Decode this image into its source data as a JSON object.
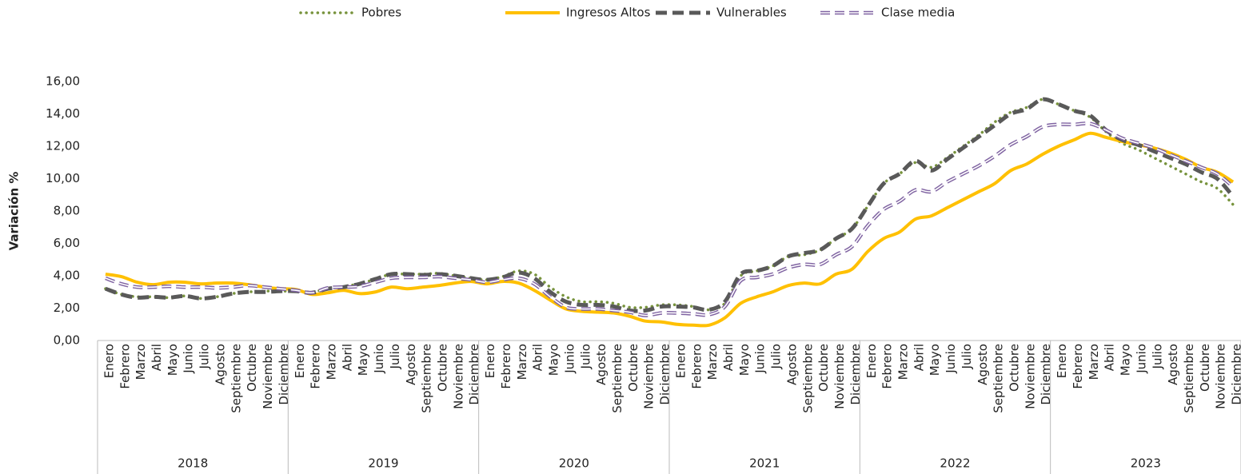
{
  "chart_data": {
    "type": "line",
    "y_label": "Variación  %",
    "categories": [
      "Enero",
      "Febrero",
      "Marzo",
      "Abril",
      "Mayo",
      "Junio",
      "Julio",
      "Agosto",
      "Septiembre",
      "Octubre",
      "Noviembre",
      "Diciembre",
      "Enero",
      "Febrero",
      "Marzo",
      "Abril",
      "Mayo",
      "Junio",
      "Julio",
      "Agosto",
      "Septiembre",
      "Octubre",
      "Noviembre",
      "Diciembre",
      "Enero",
      "Febrero",
      "Marzo",
      "Abril",
      "Mayo",
      "Junio",
      "Julio",
      "Agosto",
      "Septiembre",
      "Octubre",
      "Noviembre",
      "Diciembre",
      "Enero",
      "Febrero",
      "Marzo",
      "Abril",
      "Mayo",
      "Junio",
      "Julio",
      "Agosto",
      "Septiembre",
      "Octubre",
      "Noviembre",
      "Diciembre",
      "Enero",
      "Febrero",
      "Marzo",
      "Abril",
      "Mayo",
      "Junio",
      "Julio",
      "Agosto",
      "Septiembre",
      "Octubre",
      "Noviembre",
      "Diciembre",
      "Enero",
      "Febrero",
      "Marzo",
      "Abril",
      "Mayo",
      "Junio",
      "Julio",
      "Agosto",
      "Septiembre",
      "Octubre",
      "Noviembre",
      "Diciembre"
    ],
    "groups": [
      "2018",
      "2019",
      "2020",
      "2021",
      "2022",
      "2023"
    ],
    "ylim": [
      0,
      16
    ],
    "yticks": [
      {
        "value": 0,
        "label": "0,00"
      },
      {
        "value": 2,
        "label": "2,00"
      },
      {
        "value": 4,
        "label": "4,00"
      },
      {
        "value": 6,
        "label": "6,00"
      },
      {
        "value": 8,
        "label": "8,00"
      },
      {
        "value": 10,
        "label": "10,00"
      },
      {
        "value": 12,
        "label": "12,00"
      },
      {
        "value": 14,
        "label": "14,00"
      },
      {
        "value": 16,
        "label": "16,00"
      }
    ],
    "grid": false,
    "legend": "top",
    "series": [
      {
        "name": "Pobres",
        "color": "#77933c",
        "style": "dotted",
        "values": [
          3.2,
          2.85,
          2.7,
          2.7,
          2.65,
          2.75,
          2.6,
          2.7,
          2.9,
          3.0,
          3.05,
          3.05,
          3.05,
          3.0,
          3.2,
          3.35,
          3.5,
          3.8,
          4.1,
          4.1,
          4.1,
          4.15,
          4.0,
          3.85,
          3.75,
          3.95,
          4.3,
          4.1,
          3.3,
          2.7,
          2.4,
          2.4,
          2.3,
          2.05,
          2.05,
          2.2,
          2.2,
          2.1,
          1.9,
          2.3,
          4.0,
          4.3,
          4.6,
          5.2,
          5.3,
          5.6,
          6.3,
          6.9,
          8.3,
          9.7,
          10.3,
          11.0,
          10.7,
          11.3,
          12.0,
          12.7,
          13.5,
          14.1,
          14.4,
          14.9,
          14.6,
          14.2,
          13.8,
          12.9,
          12.2,
          11.8,
          11.3,
          10.8,
          10.3,
          9.8,
          9.4,
          8.4
        ]
      },
      {
        "name": "Ingresos Altos",
        "color": "#ffc000",
        "style": "solid",
        "values": [
          4.1,
          3.95,
          3.6,
          3.45,
          3.6,
          3.6,
          3.5,
          3.55,
          3.55,
          3.45,
          3.3,
          3.2,
          3.15,
          2.85,
          2.95,
          3.1,
          2.9,
          3.0,
          3.3,
          3.2,
          3.3,
          3.4,
          3.55,
          3.65,
          3.5,
          3.65,
          3.55,
          3.1,
          2.5,
          1.95,
          1.8,
          1.75,
          1.7,
          1.5,
          1.2,
          1.15,
          1.0,
          0.95,
          0.95,
          1.4,
          2.3,
          2.7,
          3.0,
          3.4,
          3.55,
          3.5,
          4.1,
          4.4,
          5.5,
          6.3,
          6.7,
          7.5,
          7.7,
          8.2,
          8.7,
          9.2,
          9.7,
          10.5,
          10.9,
          11.5,
          12.0,
          12.4,
          12.8,
          12.55,
          12.3,
          12.1,
          11.9,
          11.6,
          11.2,
          10.7,
          10.4,
          9.8
        ]
      },
      {
        "name": "Vulnerables",
        "color": "#595959",
        "style": "dashed",
        "values": [
          3.2,
          2.85,
          2.65,
          2.7,
          2.65,
          2.75,
          2.6,
          2.7,
          2.9,
          3.0,
          3.0,
          3.05,
          3.05,
          2.95,
          3.2,
          3.3,
          3.5,
          3.8,
          4.1,
          4.1,
          4.05,
          4.1,
          4.0,
          3.85,
          3.75,
          3.9,
          4.2,
          3.85,
          3.0,
          2.4,
          2.2,
          2.2,
          2.1,
          1.85,
          1.85,
          2.1,
          2.1,
          2.05,
          1.9,
          2.4,
          4.1,
          4.3,
          4.6,
          5.2,
          5.4,
          5.6,
          6.3,
          6.9,
          8.3,
          9.7,
          10.3,
          11.1,
          10.5,
          11.2,
          11.9,
          12.6,
          13.3,
          14.0,
          14.3,
          14.9,
          14.6,
          14.2,
          13.9,
          13.0,
          12.4,
          12.1,
          11.7,
          11.3,
          10.9,
          10.4,
          10.0,
          8.9
        ]
      },
      {
        "name": "Clase media",
        "color": "#8064a2",
        "style": "double",
        "values": [
          3.85,
          3.5,
          3.3,
          3.3,
          3.35,
          3.3,
          3.3,
          3.25,
          3.3,
          3.4,
          3.3,
          3.2,
          3.1,
          2.95,
          3.25,
          3.3,
          3.35,
          3.6,
          3.85,
          3.9,
          3.9,
          3.95,
          3.85,
          3.75,
          3.6,
          3.75,
          3.85,
          3.5,
          2.7,
          2.05,
          1.95,
          1.95,
          1.85,
          1.75,
          1.55,
          1.7,
          1.7,
          1.65,
          1.6,
          2.1,
          3.7,
          3.9,
          4.1,
          4.5,
          4.7,
          4.7,
          5.3,
          5.8,
          7.1,
          8.1,
          8.6,
          9.3,
          9.2,
          9.8,
          10.3,
          10.8,
          11.4,
          12.1,
          12.6,
          13.2,
          13.35,
          13.35,
          13.4,
          13.0,
          12.5,
          12.2,
          11.9,
          11.5,
          11.1,
          10.7,
          10.3,
          9.5
        ]
      }
    ]
  }
}
